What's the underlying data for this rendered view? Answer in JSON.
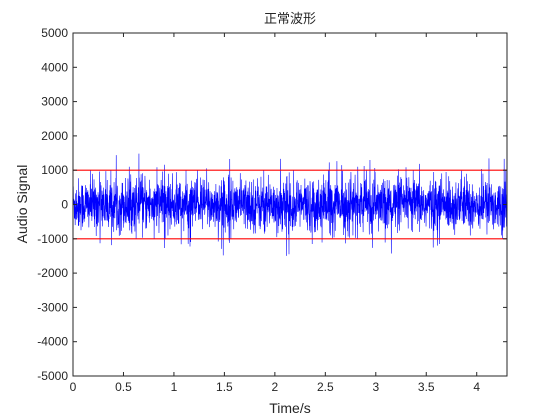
{
  "chart_data": {
    "type": "line",
    "title": "正常波形",
    "xlabel": "Time/s",
    "ylabel": "Audio Signal",
    "xlim": [
      0,
      4.3
    ],
    "ylim": [
      -5000,
      5000
    ],
    "x_ticks": [
      0,
      0.5,
      1,
      1.5,
      2,
      2.5,
      3,
      3.5,
      4
    ],
    "x_tick_labels": [
      "0",
      "0.5",
      "1",
      "1.5",
      "2",
      "2.5",
      "3",
      "3.5",
      "4"
    ],
    "y_ticks": [
      5000,
      4000,
      3000,
      2000,
      1000,
      0,
      -1000,
      -2000,
      -3000,
      -4000,
      -5000
    ],
    "y_tick_labels": [
      "5000",
      "4000",
      "3000",
      "2000",
      "1000",
      "0",
      "-1000",
      "-2000",
      "-3000",
      "-4000",
      "-5000"
    ],
    "grid": false,
    "series": [
      {
        "color": "#0000ff",
        "description": "dense audio waveform, typically within about ±1000, peaks near ±1500",
        "typical_amplitude": 900,
        "peak_amplitude": 1500
      }
    ],
    "threshold_lines": [
      {
        "y": 1000,
        "color": "#ff0000"
      },
      {
        "y": -1000,
        "color": "#ff0000"
      }
    ]
  }
}
